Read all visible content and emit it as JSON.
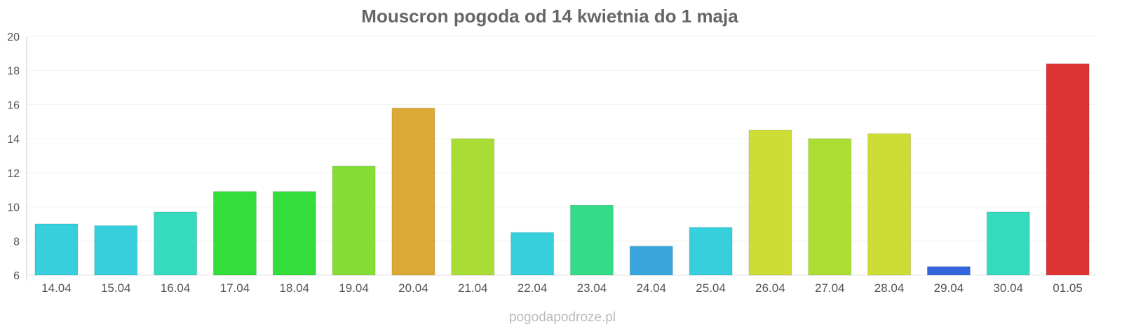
{
  "chart_data": {
    "type": "bar",
    "title": "Mouscron pogoda od 14 kwietnia do 1 maja",
    "xlabel": "",
    "ylabel": "",
    "ylim": [
      6,
      20
    ],
    "yticks": [
      6,
      8,
      10,
      12,
      14,
      16,
      18,
      20
    ],
    "grid": true,
    "categories": [
      "14.04",
      "15.04",
      "16.04",
      "17.04",
      "18.04",
      "19.04",
      "20.04",
      "21.04",
      "22.04",
      "23.04",
      "24.04",
      "25.04",
      "26.04",
      "27.04",
      "28.04",
      "29.04",
      "30.04",
      "01.05"
    ],
    "values": [
      9.0,
      8.9,
      9.7,
      10.9,
      10.9,
      12.4,
      15.8,
      14.0,
      8.5,
      10.1,
      7.7,
      8.8,
      14.5,
      14.0,
      14.3,
      6.5,
      9.7,
      18.4
    ],
    "colors": [
      "#36cfdb",
      "#36cfdb",
      "#36dbbf",
      "#33dd3a",
      "#33dd3a",
      "#86dd36",
      "#dba935",
      "#a9dd36",
      "#36cfdb",
      "#36db8a",
      "#38a6db",
      "#36cfdb",
      "#cedd36",
      "#acdd33",
      "#cedd36",
      "#3366dd",
      "#36dbbf",
      "#dd3333"
    ]
  },
  "credit": "pogodapodroze.pl"
}
